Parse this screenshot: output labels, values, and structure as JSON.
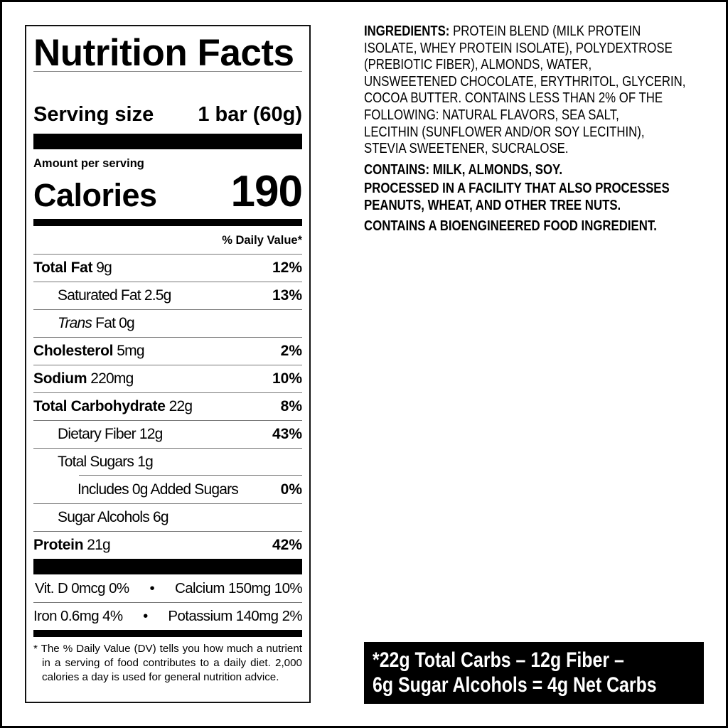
{
  "nutrition": {
    "title": "Nutrition Facts",
    "serving_label": "Serving size",
    "serving_value": "1 bar (60g)",
    "amount_per_serving": "Amount per serving",
    "calories_label": "Calories",
    "calories_value": "190",
    "dv_header": "% Daily Value*",
    "rows": [
      {
        "name": "Total Fat",
        "amount": "9g",
        "dv": "12%"
      },
      {
        "name": "Saturated Fat",
        "amount": "2.5g",
        "dv": "13%"
      },
      {
        "name": "Trans",
        "amount": "Fat 0g",
        "dv": ""
      },
      {
        "name": "Cholesterol",
        "amount": "5mg",
        "dv": "2%"
      },
      {
        "name": "Sodium",
        "amount": "220mg",
        "dv": "10%"
      },
      {
        "name": "Total Carbohydrate",
        "amount": "22g",
        "dv": "8%"
      },
      {
        "name": "Dietary Fiber",
        "amount": "12g",
        "dv": "43%"
      },
      {
        "name": "Total Sugars",
        "amount": "1g",
        "dv": ""
      },
      {
        "name": "Includes 0g Added Sugars",
        "amount": "",
        "dv": "0%"
      },
      {
        "name": "Sugar Alcohols",
        "amount": "6g",
        "dv": ""
      },
      {
        "name": "Protein",
        "amount": "21g",
        "dv": "42%"
      }
    ],
    "vitamins": [
      {
        "left": "Vit. D 0mcg 0%",
        "right": "Calcium 150mg 10%"
      },
      {
        "left": "Iron 0.6mg 4%",
        "right": "Potassium 140mg 2%"
      }
    ],
    "bullet": "•",
    "footnote": "* The % Daily Value (DV) tells you how much a nutrient in a serving of food contributes to a daily diet. 2,000 calories a day is used for general nutrition advice."
  },
  "ingredients": {
    "label": "INGREDIENTS:",
    "lines": [
      " PROTEIN BLEND (MILK PROTEIN",
      "ISOLATE, WHEY PROTEIN ISOLATE), POLYDEXTROSE",
      "(PREBIOTIC FIBER), ALMONDS, WATER,",
      "UNSWEETENED CHOCOLATE, ERYTHRITOL, GLYCERIN,",
      "COCOA BUTTER. CONTAINS LESS THAN 2% OF THE",
      "FOLLOWING: NATURAL FLAVORS, SEA SALT,",
      "LECITHIN (SUNFLOWER AND/OR SOY LECITHIN),",
      "STEVIA SWEETENER, SUCRALOSE."
    ],
    "contains": "CONTAINS: MILK, ALMONDS, SOY.",
    "facility": [
      "PROCESSED IN A FACILITY THAT ALSO PROCESSES",
      "PEANUTS, WHEAT, AND OTHER TREE NUTS."
    ],
    "bioengineered": "CONTAINS A BIOENGINEERED FOOD INGREDIENT."
  },
  "net_carbs": {
    "line1": "*22g Total Carbs – 12g Fiber –",
    "line2": "6g Sugar Alcohols = 4g Net Carbs"
  },
  "colors": {
    "ink": "#000000",
    "background": "#ffffff",
    "rule": "#777777"
  }
}
